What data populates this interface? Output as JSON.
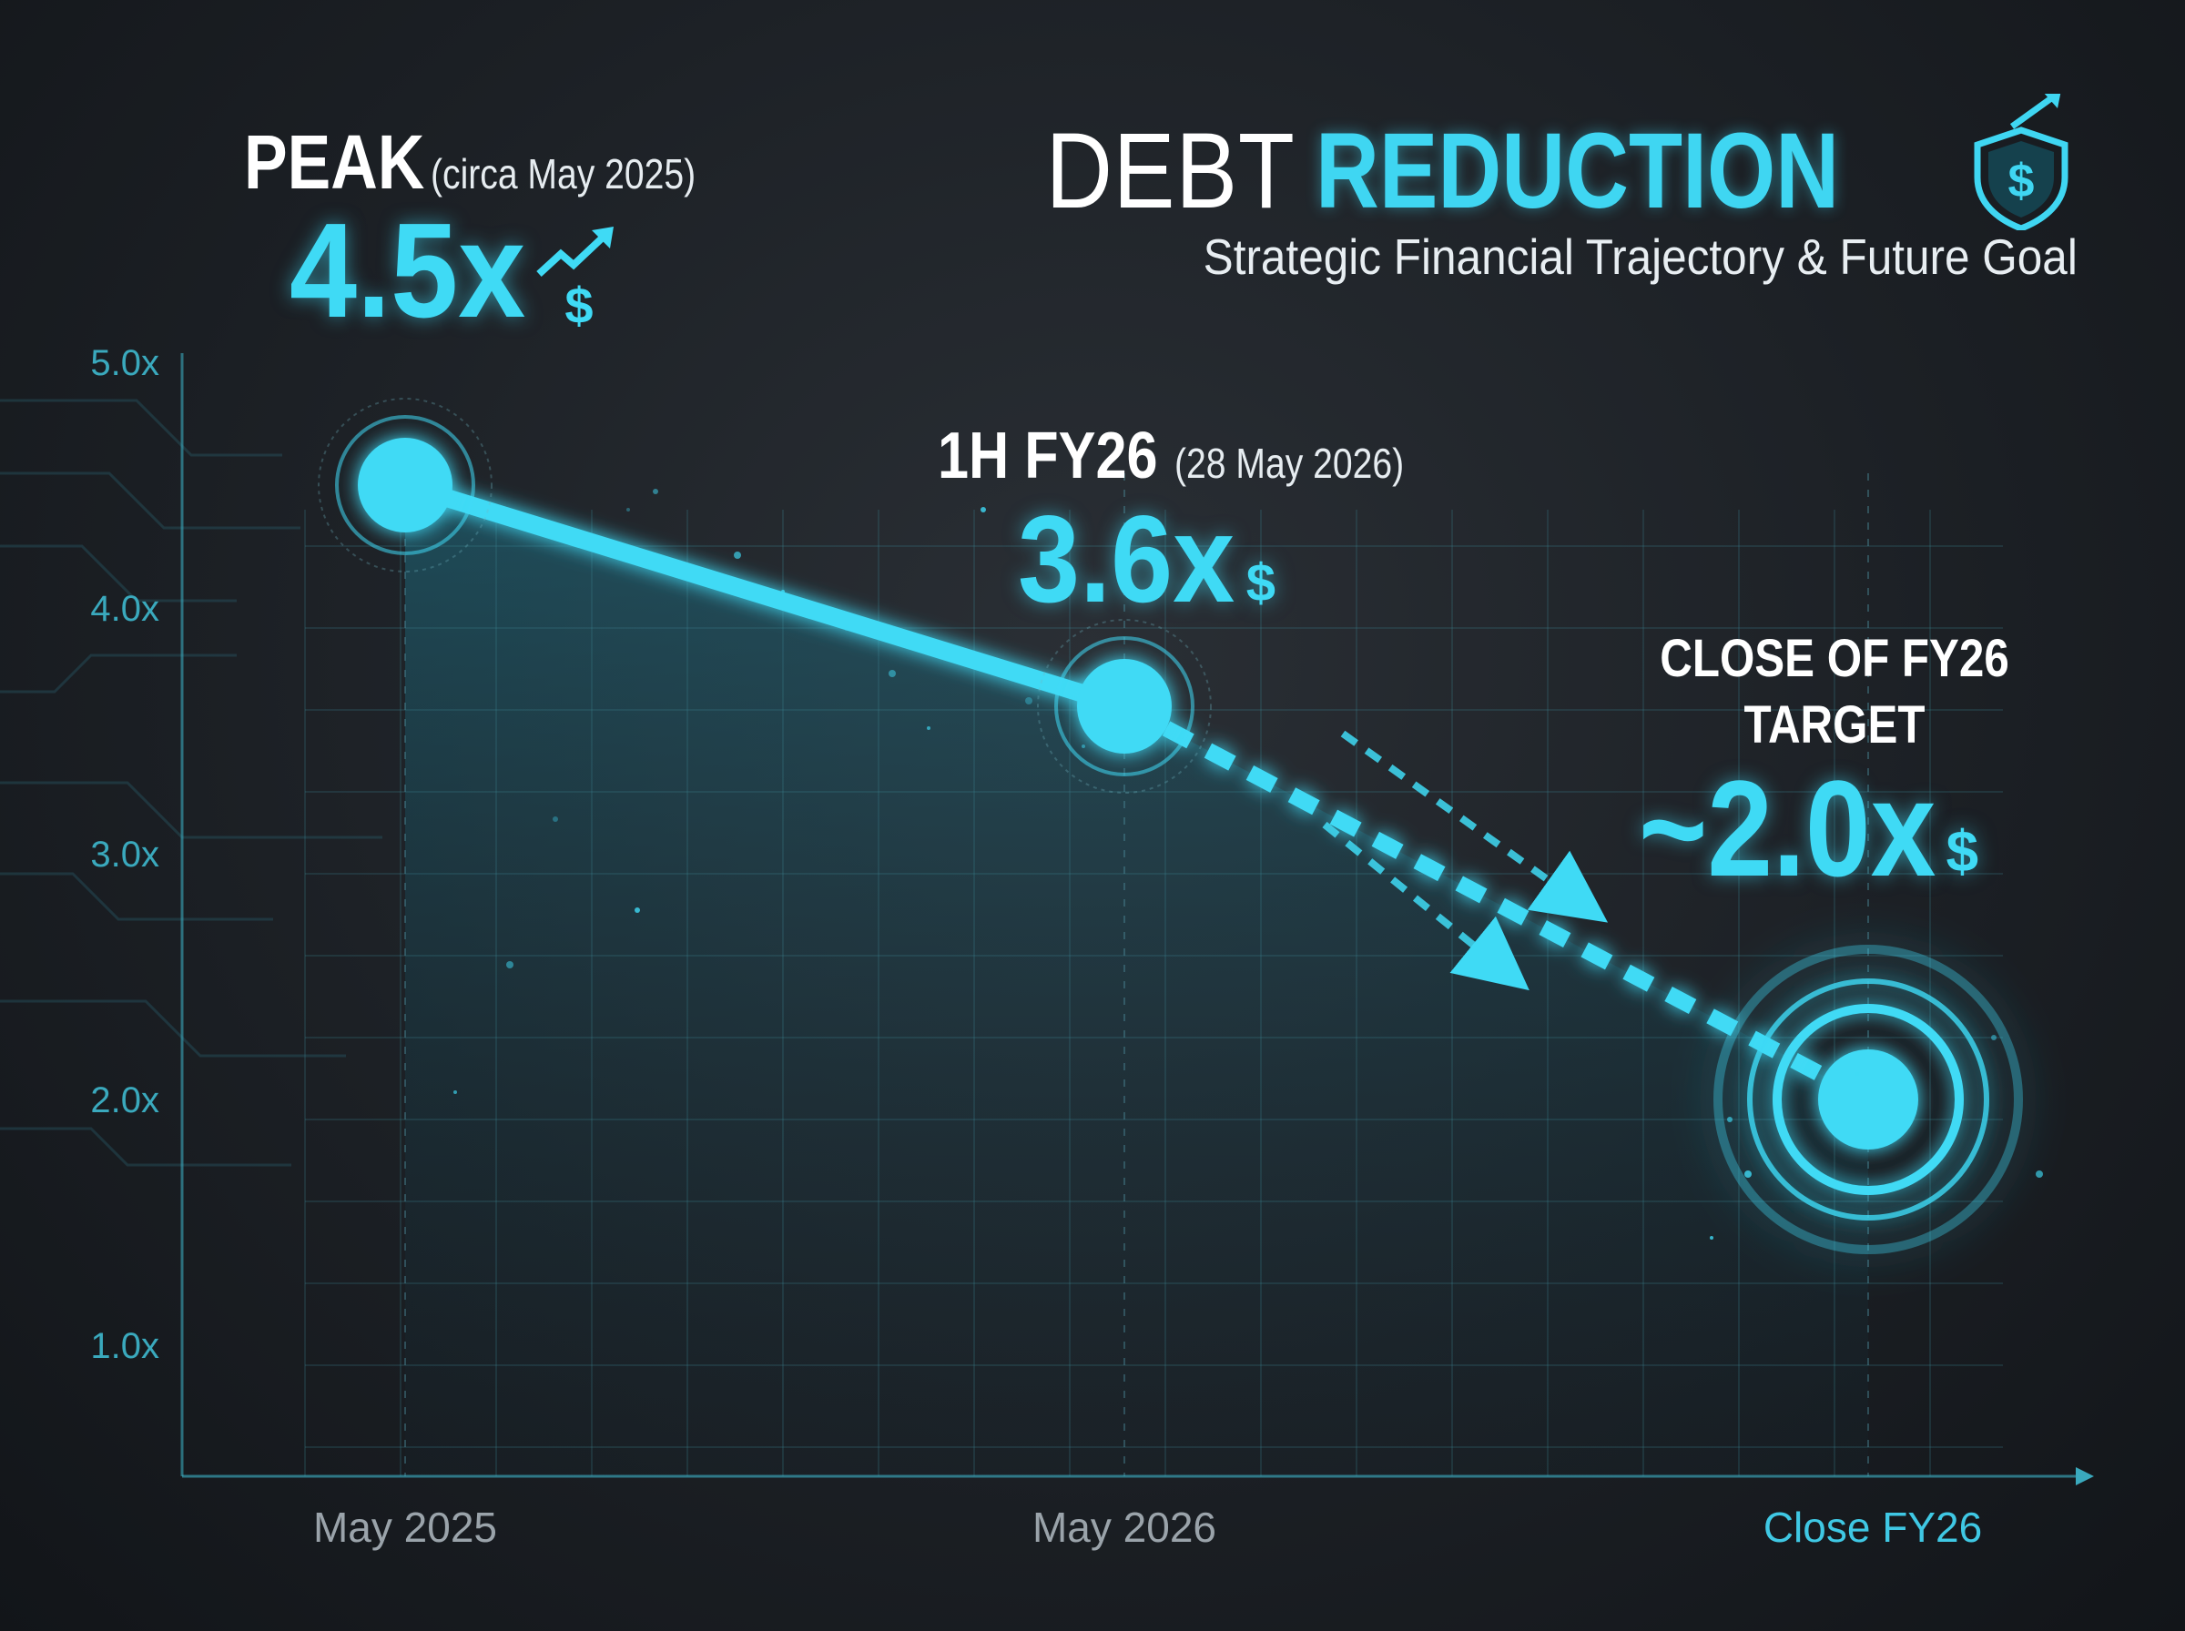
{
  "title": {
    "part1": "DEBT",
    "part2": "REDUCTION"
  },
  "subtitle": "Strategic Financial Trajectory & Future Goal",
  "colors": {
    "accent": "#3fdaf5",
    "background": "#1c2025",
    "text": "#ffffff",
    "axis": "#3aa9bd"
  },
  "icons": {
    "title": "shield-dollar-icon",
    "arrow": "trend-up-arrow-icon",
    "dollar": "dollar-icon"
  },
  "annotations": [
    {
      "head": "PEAK",
      "sub": "(circa May 2025)",
      "value": "4.5x"
    },
    {
      "head": "1H FY26",
      "sub": "(28 May 2026)",
      "value": "3.6x"
    },
    {
      "head_line1": "CLOSE OF FY26",
      "head_line2": "TARGET",
      "value": "~2.0x"
    }
  ],
  "dollar_sign": "$",
  "chart_data": {
    "type": "line",
    "categories": [
      "May 2025",
      "May 2026",
      "Close FY26"
    ],
    "series": [
      {
        "values": [
          4.5,
          3.6,
          2.0
        ]
      }
    ],
    "projected_from_index": 1,
    "yticks": [
      "5.0x",
      "4.0x",
      "3.0x",
      "2.0x",
      "1.0x"
    ],
    "ytick_values": [
      5.0,
      4.0,
      3.0,
      2.0,
      1.0
    ],
    "ylim": [
      0.5,
      5.0
    ],
    "grid": true,
    "highlight_category": "Close FY26"
  }
}
